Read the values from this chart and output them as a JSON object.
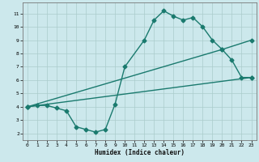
{
  "title": "",
  "xlabel": "Humidex (Indice chaleur)",
  "bg_color": "#cce8ec",
  "grid_color": "#aacccc",
  "line_color": "#1a7a6e",
  "xlim": [
    -0.5,
    23.5
  ],
  "ylim": [
    1.5,
    11.8
  ],
  "xticks": [
    0,
    1,
    2,
    3,
    4,
    5,
    6,
    7,
    8,
    9,
    10,
    11,
    12,
    13,
    14,
    15,
    16,
    17,
    18,
    19,
    20,
    21,
    22,
    23
  ],
  "yticks": [
    2,
    3,
    4,
    5,
    6,
    7,
    8,
    9,
    10,
    11
  ],
  "line1_x": [
    0,
    1,
    2,
    3,
    4,
    5,
    6,
    7,
    8,
    9,
    10,
    12,
    13,
    14,
    15,
    16,
    17,
    18,
    19,
    20,
    21,
    22,
    23
  ],
  "line1_y": [
    4.0,
    4.1,
    4.1,
    3.9,
    3.7,
    2.5,
    2.3,
    2.1,
    2.3,
    4.2,
    7.0,
    9.0,
    10.5,
    11.2,
    10.8,
    10.5,
    10.7,
    10.0,
    9.0,
    8.3,
    7.5,
    6.2,
    6.2
  ],
  "line2_x": [
    0,
    20,
    23
  ],
  "line2_y": [
    4.0,
    8.3,
    9.0
  ],
  "line3_x": [
    0,
    23
  ],
  "line3_y": [
    4.0,
    6.2
  ],
  "marker_size": 2.5,
  "linewidth": 1.0
}
